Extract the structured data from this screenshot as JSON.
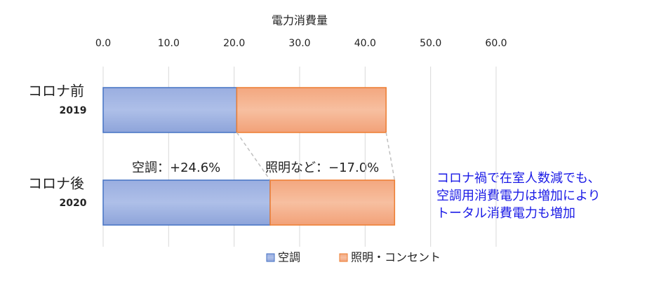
{
  "chart_data": {
    "type": "stacked-barh",
    "axis_title": "電力消費量",
    "categories": [
      "コロナ前",
      "コロナ後"
    ],
    "category_years": [
      "2019",
      "2020"
    ],
    "series": [
      {
        "name": "空調",
        "color": "#4472c4",
        "values": [
          20.4,
          25.5
        ]
      },
      {
        "name": "照明・コンセント",
        "color": "#ed7d31",
        "values": [
          22.8,
          19.0
        ]
      }
    ],
    "xlim": [
      0,
      60
    ],
    "xticks": [
      {
        "value": 0,
        "label": "0.0"
      },
      {
        "value": 10,
        "label": "10.0"
      },
      {
        "value": 20,
        "label": "20.0"
      },
      {
        "value": 30,
        "label": "30.0"
      },
      {
        "value": 40,
        "label": "40.0"
      },
      {
        "value": 50,
        "label": "50.0"
      },
      {
        "value": 60,
        "label": "60.0"
      }
    ],
    "grid": true,
    "legend": "bottom",
    "annotations": [
      "空調：+24.6%",
      "照明など：−17.0%"
    ],
    "note_lines": [
      "コロナ禍で在室人数減でも、",
      "空調用消費電力は増加により",
      "トータル消費電力も増加"
    ]
  }
}
